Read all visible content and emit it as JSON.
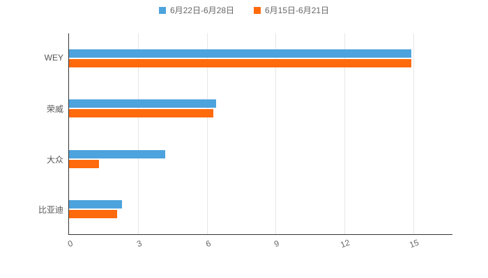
{
  "legend": {
    "items": [
      {
        "label": "6月22日-6月28日",
        "color": "#4da3dd"
      },
      {
        "label": "6月15日-6月21日",
        "color": "#ff6a0c"
      }
    ]
  },
  "chart_data": {
    "type": "bar",
    "orientation": "horizontal",
    "title": "",
    "xlabel": "",
    "ylabel": "",
    "categories": [
      "WEY",
      "荣威",
      "大众",
      "比亚迪"
    ],
    "series": [
      {
        "name": "6月22日-6月28日",
        "color": "#4da3dd",
        "values": [
          14.9,
          6.4,
          4.2,
          2.3
        ]
      },
      {
        "name": "6月15日-6月21日",
        "color": "#ff6a0c",
        "values": [
          14.9,
          6.3,
          1.3,
          2.1
        ]
      }
    ],
    "xticks": [
      0,
      3,
      6,
      9,
      12,
      15
    ],
    "xlim": [
      0,
      16.7
    ],
    "grid": true,
    "legend_position": "top",
    "axis_color": "#333333",
    "grid_color": "#e6e6e6"
  }
}
